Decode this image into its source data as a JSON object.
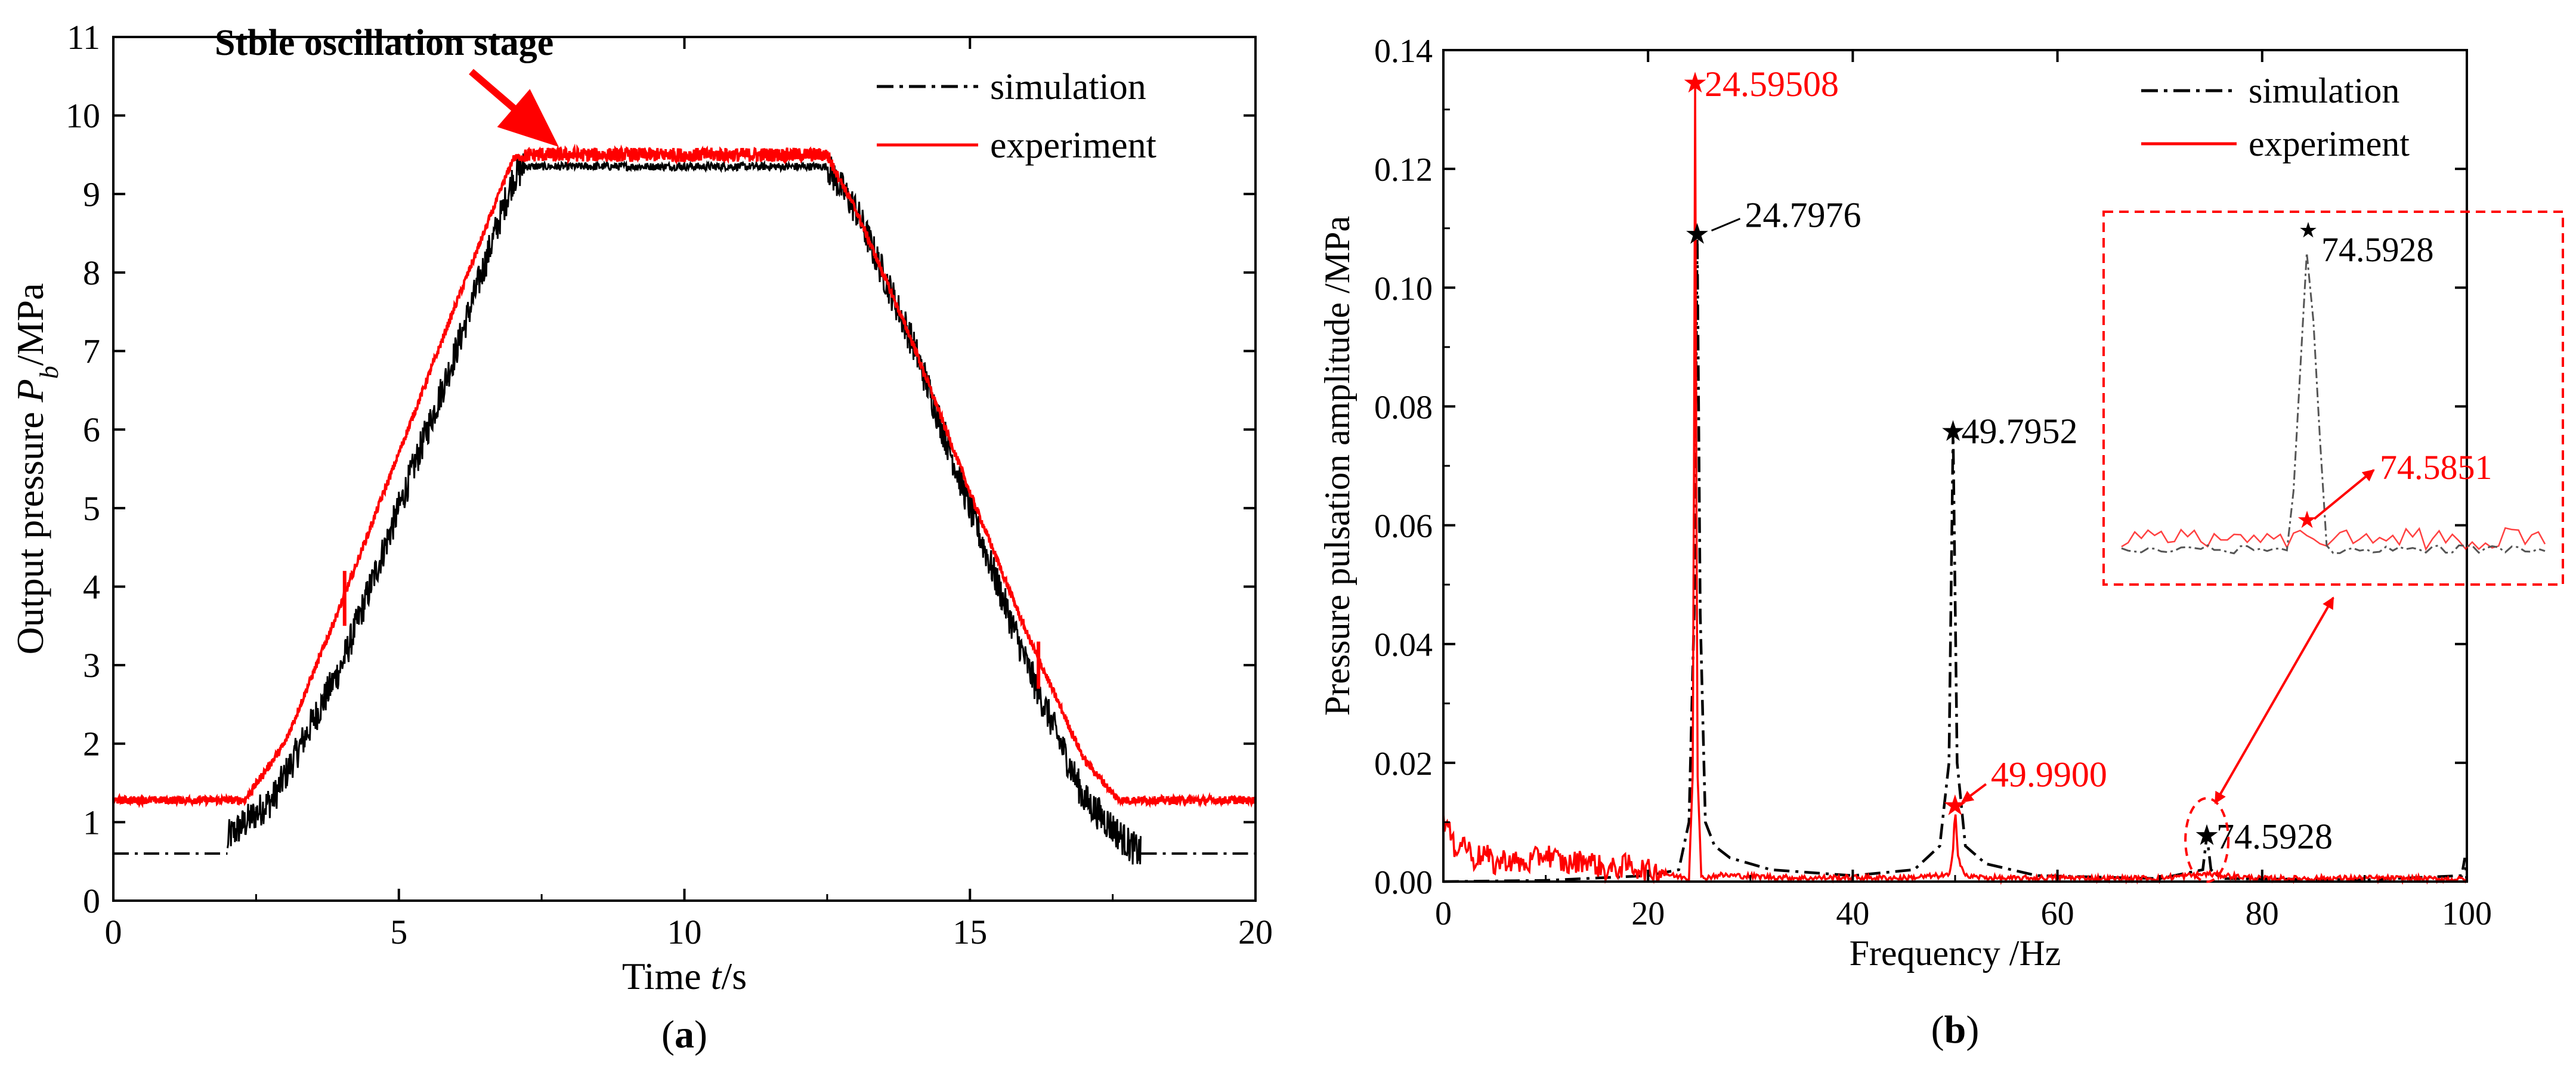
{
  "colors": {
    "simulation": "#000000",
    "experiment": "#ff0000",
    "axis": "#000000"
  },
  "chart_data": [
    {
      "type": "line",
      "panel_label": "(a)",
      "panel_label_parts": [
        "(",
        "a",
        ")"
      ],
      "xlabel": "Time t/s",
      "xlabel_parts": [
        "Time ",
        "t",
        "/s"
      ],
      "ylabel": "Output pressure Pb/MPa",
      "ylabel_parts": [
        "Output pressure ",
        "P",
        "b",
        "/MPa"
      ],
      "xlim": [
        0,
        20
      ],
      "ylim": [
        0,
        11
      ],
      "xticks": [
        0,
        5,
        10,
        15,
        20
      ],
      "xtick_labels": [
        "0",
        "5",
        "10",
        "15",
        "20"
      ],
      "yticks": [
        0,
        1,
        2,
        3,
        4,
        5,
        6,
        7,
        8,
        9,
        10,
        11
      ],
      "ytick_labels": [
        "0",
        "1",
        "2",
        "3",
        "4",
        "5",
        "6",
        "7",
        "8",
        "9",
        "10",
        "11"
      ],
      "grid": false,
      "legend_position": "top-right",
      "annotation": {
        "text": "Stble oscillation stage",
        "points_to": [
          7.8,
          9.55
        ]
      },
      "series": [
        {
          "name": "simulation",
          "style": "dash-dot",
          "color": "#000000",
          "x": [
            0,
            2.0,
            2.0,
            2.8,
            4.0,
            5.0,
            6.0,
            7.0,
            7.2,
            12.5,
            13.0,
            14.0,
            15.0,
            16.0,
            17.0,
            17.8,
            18.0,
            18.0,
            20
          ],
          "y": [
            0.6,
            0.6,
            0.8,
            1.3,
            3.0,
            5.0,
            7.0,
            9.2,
            9.35,
            9.35,
            8.8,
            7.1,
            5.0,
            3.0,
            1.3,
            0.7,
            0.6,
            0.6,
            0.6
          ]
        },
        {
          "name": "experiment",
          "style": "solid",
          "color": "#ff0000",
          "x": [
            0,
            2.0,
            2.3,
            3.0,
            4.0,
            5.0,
            6.0,
            7.0,
            7.3,
            12.5,
            13.0,
            14.0,
            15.0,
            16.0,
            17.0,
            17.6,
            20
          ],
          "y": [
            1.28,
            1.28,
            1.28,
            2.0,
            3.8,
            5.7,
            7.6,
            9.45,
            9.5,
            9.5,
            8.8,
            7.1,
            5.2,
            3.4,
            1.8,
            1.28,
            1.28
          ]
        }
      ]
    },
    {
      "type": "line",
      "panel_label": "(b)",
      "panel_label_parts": [
        "(",
        "b",
        ")"
      ],
      "xlabel": "Frequency /Hz",
      "ylabel": "Pressure pulsation amplitude /MPa",
      "xlim": [
        0,
        100
      ],
      "ylim": [
        0,
        0.14
      ],
      "xticks": [
        0,
        20,
        40,
        60,
        80,
        100
      ],
      "xtick_labels": [
        "0",
        "20",
        "40",
        "60",
        "80",
        "100"
      ],
      "yticks": [
        0,
        0.02,
        0.04,
        0.06,
        0.08,
        0.1,
        0.12,
        0.14
      ],
      "ytick_labels": [
        "0.00",
        "0.02",
        "0.04",
        "0.06",
        "0.08",
        "0.10",
        "0.12",
        "0.14"
      ],
      "grid": false,
      "legend_position": "top-right",
      "series": [
        {
          "name": "simulation",
          "style": "dash-dot",
          "color": "#000000",
          "x": [
            0,
            10,
            20,
            23,
            24.0,
            24.5,
            24.8,
            25.1,
            25.6,
            26.5,
            28,
            32,
            40,
            46,
            48.5,
            49.4,
            49.8,
            50.2,
            51,
            53,
            58,
            70,
            74.2,
            74.6,
            75.0,
            76,
            90,
            99.5,
            99.8,
            100
          ],
          "y": [
            0.0,
            0.0002,
            0.001,
            0.002,
            0.01,
            0.045,
            0.109,
            0.045,
            0.01,
            0.006,
            0.004,
            0.002,
            0.001,
            0.002,
            0.006,
            0.02,
            0.0758,
            0.02,
            0.006,
            0.003,
            0.001,
            0.0005,
            0.002,
            0.0078,
            0.002,
            0.0005,
            0.0003,
            0.001,
            0.004,
            0.0
          ]
        },
        {
          "name": "experiment",
          "style": "solid",
          "color": "#ff0000",
          "x": [
            0,
            0.5,
            1,
            2,
            3,
            4,
            5,
            6,
            8,
            10,
            12,
            14,
            16,
            18,
            20,
            22,
            24.0,
            24.4,
            24.6,
            24.8,
            25.2,
            27,
            30,
            35,
            40,
            45,
            49.5,
            49.8,
            50.0,
            50.3,
            51,
            55,
            60,
            65,
            70,
            74.6,
            80,
            90,
            100
          ],
          "y": [
            0.01,
            0.008,
            0.005,
            0.006,
            0.003,
            0.004,
            0.002,
            0.003,
            0.002,
            0.004,
            0.002,
            0.003,
            0.001,
            0.002,
            0.001,
            0.001,
            0.0005,
            0.02,
            0.1345,
            0.02,
            0.0005,
            0.001,
            0.0008,
            0.0005,
            0.0006,
            0.0005,
            0.001,
            0.005,
            0.0128,
            0.004,
            0.0008,
            0.0004,
            0.0006,
            0.0004,
            0.0005,
            0.0012,
            0.0004,
            0.0005,
            0.0003
          ]
        }
      ],
      "peaks": [
        {
          "series": "experiment",
          "x": 24.59508,
          "y": 0.1345,
          "label": "24.59508"
        },
        {
          "series": "simulation",
          "x": 24.7976,
          "y": 0.109,
          "label": "24.7976"
        },
        {
          "series": "simulation",
          "x": 49.7952,
          "y": 0.0758,
          "label": "49.7952"
        },
        {
          "series": "experiment",
          "x": 49.99,
          "y": 0.0128,
          "label": "49.9900"
        },
        {
          "series": "simulation",
          "x": 74.5928,
          "y": 0.0078,
          "label": "74.5928"
        }
      ],
      "inset": {
        "simulation_peak_label": "74.5928",
        "experiment_peak_label": "74.5851"
      }
    }
  ]
}
